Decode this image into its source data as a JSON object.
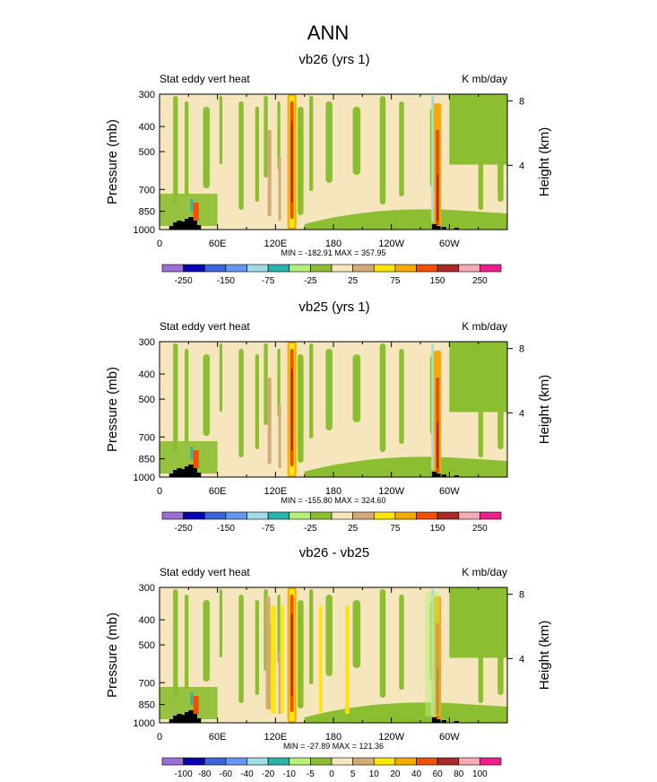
{
  "title": "ANN",
  "chart_data": {
    "type": "heatmap",
    "title": "ANN",
    "xlabel": "",
    "ylabel": "Pressure (mb)",
    "ylabel_right": "Height (km)",
    "xticks": [
      "0",
      "60E",
      "120E",
      "180",
      "120W",
      "60W"
    ],
    "xlim": [
      0,
      360
    ],
    "yticks": [
      300,
      400,
      500,
      700,
      850,
      1000
    ],
    "ylim": [
      1000,
      300
    ],
    "yticks_right": [
      8,
      4
    ],
    "panels": [
      {
        "subtitle": "vb26 (yrs 1)",
        "left_label": "Stat eddy vert heat",
        "right_label": "K mb/day",
        "stats": "MIN = -182.91  MAX = 357.95",
        "levels": [
          "-250",
          "-150",
          "-75",
          "-25",
          "25",
          "75",
          "150",
          "250"
        ],
        "colors": [
          "#9b6fd6",
          "#0a00b4",
          "#3c64dc",
          "#6496f0",
          "#a0dce6",
          "#28b4aa",
          "#b4f078",
          "#8cbe32",
          "#f5e6be",
          "#d2aa78",
          "#fae600",
          "#f5aa00",
          "#f05000",
          "#aa2828",
          "#f5aab4",
          "#f01e8c"
        ]
      },
      {
        "subtitle": "vb25 (yrs 1)",
        "left_label": "Stat eddy vert heat",
        "right_label": "K mb/day",
        "stats": "MIN = -155.80  MAX = 324.60",
        "levels": [
          "-250",
          "-150",
          "-75",
          "-25",
          "25",
          "75",
          "150",
          "250"
        ],
        "colors": [
          "#9b6fd6",
          "#0a00b4",
          "#3c64dc",
          "#6496f0",
          "#a0dce6",
          "#28b4aa",
          "#b4f078",
          "#8cbe32",
          "#f5e6be",
          "#d2aa78",
          "#fae600",
          "#f5aa00",
          "#f05000",
          "#aa2828",
          "#f5aab4",
          "#f01e8c"
        ]
      },
      {
        "subtitle": "vb26 - vb25",
        "left_label": "Stat eddy vert heat",
        "right_label": "K mb/day",
        "stats": "MIN = -27.89  MAX = 121.36",
        "levels": [
          "-100",
          "-80",
          "-60",
          "-40",
          "-20",
          "-10",
          "-5",
          "0",
          "5",
          "10",
          "20",
          "40",
          "60",
          "80",
          "100"
        ],
        "colors": [
          "#9b6fd6",
          "#0a00b4",
          "#3c64dc",
          "#6496f0",
          "#a0dce6",
          "#28b4aa",
          "#b4f078",
          "#8cbe32",
          "#f5e6be",
          "#d2aa78",
          "#fae600",
          "#f5aa00",
          "#f05000",
          "#aa2828",
          "#f5aab4",
          "#f01e8c"
        ]
      }
    ]
  }
}
